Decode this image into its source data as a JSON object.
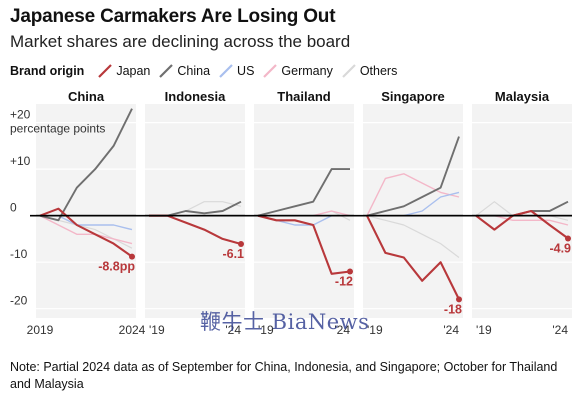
{
  "header": {
    "title": "Japanese Carmakers Are Losing Out",
    "subtitle": "Market shares are declining across the board"
  },
  "legend": {
    "heading": "Brand origin",
    "items": [
      {
        "label": "Japan",
        "color": "#b8383b"
      },
      {
        "label": "China",
        "color": "#6f6f6f"
      },
      {
        "label": "US",
        "color": "#a9bfee"
      },
      {
        "label": "Germany",
        "color": "#f3b7c8"
      },
      {
        "label": "Others",
        "color": "#d9d9d9"
      }
    ]
  },
  "note": "Note: Partial 2024 data as of September for China, Indonesia, and Singapore; October for Thailand and Malaysia",
  "watermark": "鞭牛士 BiaNews",
  "chart_data": {
    "type": "line",
    "y_unit": "percentage points",
    "ylim": [
      -22,
      24
    ],
    "y_ticks": [
      {
        "v": 20,
        "label": "+20"
      },
      {
        "v": 10,
        "label": "+10"
      },
      {
        "v": 0,
        "label": "0"
      },
      {
        "v": -10,
        "label": "-10"
      },
      {
        "v": -20,
        "label": "-20"
      }
    ],
    "panels": [
      {
        "name": "China",
        "x_labels": [
          "2019",
          "2024"
        ],
        "end_label": "-8.8pp",
        "series": {
          "Others": [
            0,
            -1,
            -2,
            -3,
            -5,
            -7
          ],
          "Germany": [
            0,
            -2,
            -4,
            -4,
            -5,
            -6
          ],
          "US": [
            0,
            0,
            -2,
            -2,
            -2,
            -3
          ],
          "China": [
            0,
            -1,
            6,
            10,
            15,
            23
          ],
          "Japan": [
            0,
            1.5,
            -2,
            -4,
            -6,
            -8.8
          ]
        }
      },
      {
        "name": "Indonesia",
        "x_labels": [
          "'19",
          "'24"
        ],
        "end_label": "-6.1",
        "series": {
          "Others": [
            0,
            0,
            1,
            3,
            3,
            2
          ],
          "Germany": [
            0,
            0,
            0,
            0,
            0,
            0
          ],
          "US": [
            0,
            0,
            0,
            0,
            0,
            0
          ],
          "China": [
            0,
            0,
            1,
            0.5,
            1,
            3
          ],
          "Japan": [
            0,
            0,
            -1.5,
            -3,
            -5,
            -6.1
          ]
        }
      },
      {
        "name": "Thailand",
        "x_labels": [
          "'19",
          "'24"
        ],
        "end_label": "-12",
        "series": {
          "Others": [
            0,
            0,
            0,
            0,
            1,
            -1
          ],
          "Germany": [
            0,
            0,
            0,
            0,
            1,
            0
          ],
          "US": [
            0,
            -1,
            -2,
            -2,
            0,
            0
          ],
          "China": [
            0,
            1,
            2,
            3,
            10,
            10
          ],
          "Japan": [
            0,
            -1,
            -1,
            -2,
            -12.5,
            -12
          ]
        }
      },
      {
        "name": "Singapore",
        "x_labels": [
          "'19",
          "'24"
        ],
        "end_label": "-18",
        "series": {
          "Others": [
            0,
            -1,
            -2,
            -4,
            -6,
            -9
          ],
          "Germany": [
            0,
            8,
            9,
            7,
            5,
            4
          ],
          "US": [
            0,
            0,
            0,
            1,
            4,
            5
          ],
          "China": [
            0,
            1,
            2,
            4,
            6,
            17
          ],
          "Japan": [
            0,
            -8,
            -9,
            -14,
            -10,
            -18
          ]
        }
      },
      {
        "name": "Malaysia",
        "x_labels": [
          "'19",
          "'24"
        ],
        "end_label": "-4.9",
        "series": {
          "Others": [
            0,
            3,
            0,
            0,
            0,
            -1
          ],
          "Germany": [
            0,
            0,
            -1,
            -1,
            -1,
            -2
          ],
          "US": [
            0,
            0,
            0,
            0,
            0,
            0
          ],
          "China": [
            0,
            0,
            0,
            1,
            1,
            3
          ],
          "Japan": [
            0,
            -3,
            0,
            1,
            -2,
            -4.9
          ]
        }
      }
    ]
  }
}
